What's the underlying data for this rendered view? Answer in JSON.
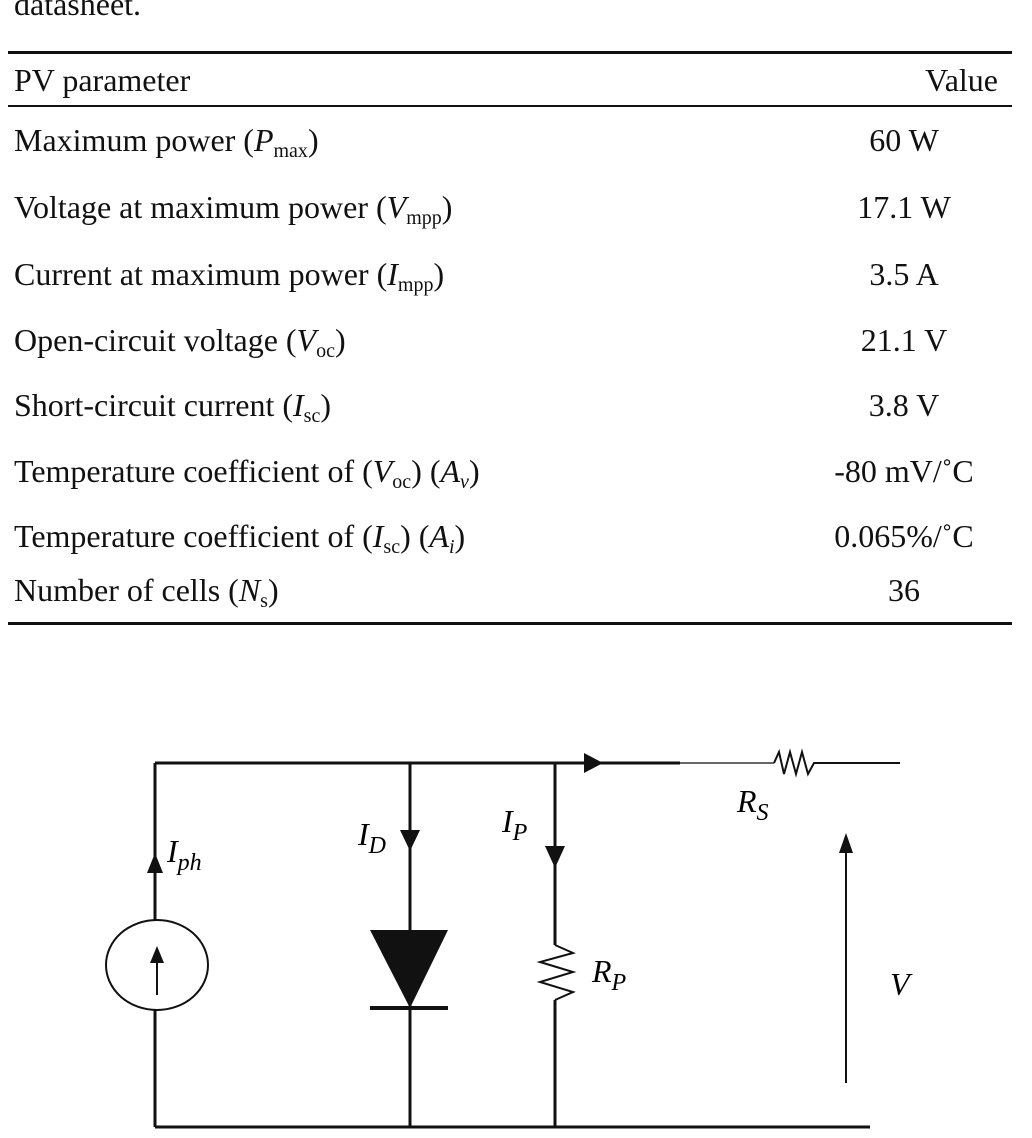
{
  "intro_text": "datasheet.",
  "table": {
    "headers": {
      "parameter": "PV parameter",
      "value": "Value"
    },
    "rows": [
      {
        "text": "Maximum power",
        "sym": "P",
        "sub": "max",
        "sym2": "",
        "sub2": "",
        "value": "60 W"
      },
      {
        "text": "Voltage at maximum power",
        "sym": "V",
        "sub": "mpp",
        "sym2": "",
        "sub2": "",
        "value": "17.1 W"
      },
      {
        "text": "Current at maximum power",
        "sym": "I",
        "sub": "mpp",
        "sym2": "",
        "sub2": "",
        "value": "3.5 A"
      },
      {
        "text": "Open-circuit voltage",
        "sym": "V",
        "sub": "oc",
        "sym2": "",
        "sub2": "",
        "value": "21.1 V"
      },
      {
        "text": "Short-circuit current",
        "sym": "I",
        "sub": "sc",
        "sym2": "",
        "sub2": "",
        "value": "3.8 V"
      },
      {
        "text": "Temperature coefficient of",
        "sym": "V",
        "sub": "oc",
        "sym2": "A",
        "sub2": "v",
        "value": "-80 mV/˚C"
      },
      {
        "text": "Temperature coefficient of",
        "sym": "I",
        "sub": "sc",
        "sym2": "A",
        "sub2": "i",
        "value": "0.065%/˚C"
      },
      {
        "text": "Number of cells",
        "sym": "N",
        "sub": "s",
        "sym2": "",
        "sub2": "",
        "value": "36"
      }
    ]
  },
  "circuit": {
    "labels": {
      "iph": "I",
      "iph_sub": "ph",
      "id": "I",
      "id_sub": "D",
      "ip": "I",
      "ip_sub": "P",
      "rs": "R",
      "rs_sub": "S",
      "rp": "R",
      "rp_sub": "P",
      "v": "V"
    }
  }
}
